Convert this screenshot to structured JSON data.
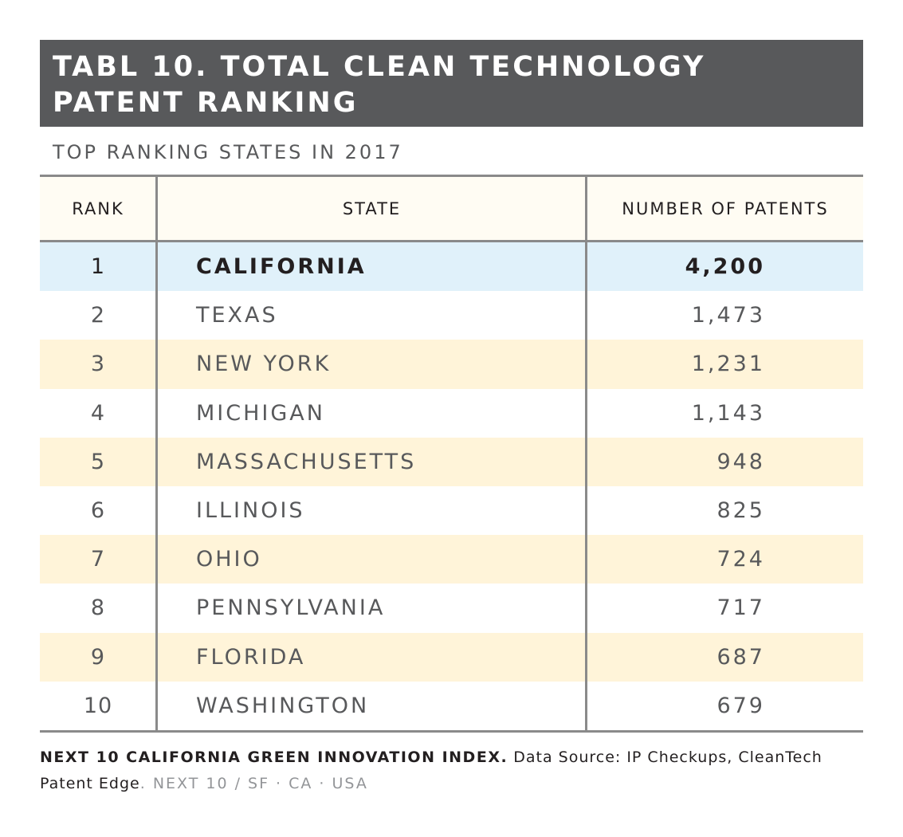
{
  "title_lines": [
    "TABL 10. TOTAL CLEAN TECHNOLOGY",
    "PATENT RANKING"
  ],
  "subtitle": "TOP RANKING STATES IN 2017",
  "colors": {
    "banner": "#58595b",
    "highlight_row": "#e0f1fa",
    "alt_row": "#fff4d9",
    "header_row": "#fffcf3",
    "rule": "#8a8a8a"
  },
  "table": {
    "headers": [
      "RANK",
      "STATE",
      "NUMBER OF PATENTS"
    ],
    "rows": [
      {
        "rank": "1",
        "state": "CALIFORNIA",
        "patents": "4,200"
      },
      {
        "rank": "2",
        "state": "TEXAS",
        "patents": "1,473"
      },
      {
        "rank": "3",
        "state": "NEW YORK",
        "patents": "1,231"
      },
      {
        "rank": "4",
        "state": "MICHIGAN",
        "patents": "1,143"
      },
      {
        "rank": "5",
        "state": "MASSACHUSETTS",
        "patents": "948"
      },
      {
        "rank": "6",
        "state": "ILLINOIS",
        "patents": "825"
      },
      {
        "rank": "7",
        "state": "OHIO",
        "patents": "724"
      },
      {
        "rank": "8",
        "state": "PENNSYLVANIA",
        "patents": "717"
      },
      {
        "rank": "9",
        "state": "FLORIDA",
        "patents": "687"
      },
      {
        "rank": "10",
        "state": "WASHINGTON",
        "patents": "679"
      }
    ]
  },
  "chart_data": {
    "type": "table",
    "title": "TABL 10. TOTAL CLEAN TECHNOLOGY PATENT RANKING",
    "subtitle": "TOP RANKING STATES IN 2017",
    "columns": [
      "RANK",
      "STATE",
      "NUMBER OF PATENTS"
    ],
    "categories": [
      "CALIFORNIA",
      "TEXAS",
      "NEW YORK",
      "MICHIGAN",
      "MASSACHUSETTS",
      "ILLINOIS",
      "OHIO",
      "PENNSYLVANIA",
      "FLORIDA",
      "WASHINGTON"
    ],
    "ranks": [
      1,
      2,
      3,
      4,
      5,
      6,
      7,
      8,
      9,
      10
    ],
    "values": [
      4200,
      1473,
      1231,
      1143,
      948,
      825,
      724,
      717,
      687,
      679
    ]
  },
  "footer": {
    "source_bold": "NEXT 10 CALIFORNIA GREEN INNOVATION INDEX.",
    "source_text": " Data Source: IP Checkups, CleanTech Patent Edge",
    "source_period": ".",
    "credit": " NEXT 10 / SF · CA · USA"
  }
}
